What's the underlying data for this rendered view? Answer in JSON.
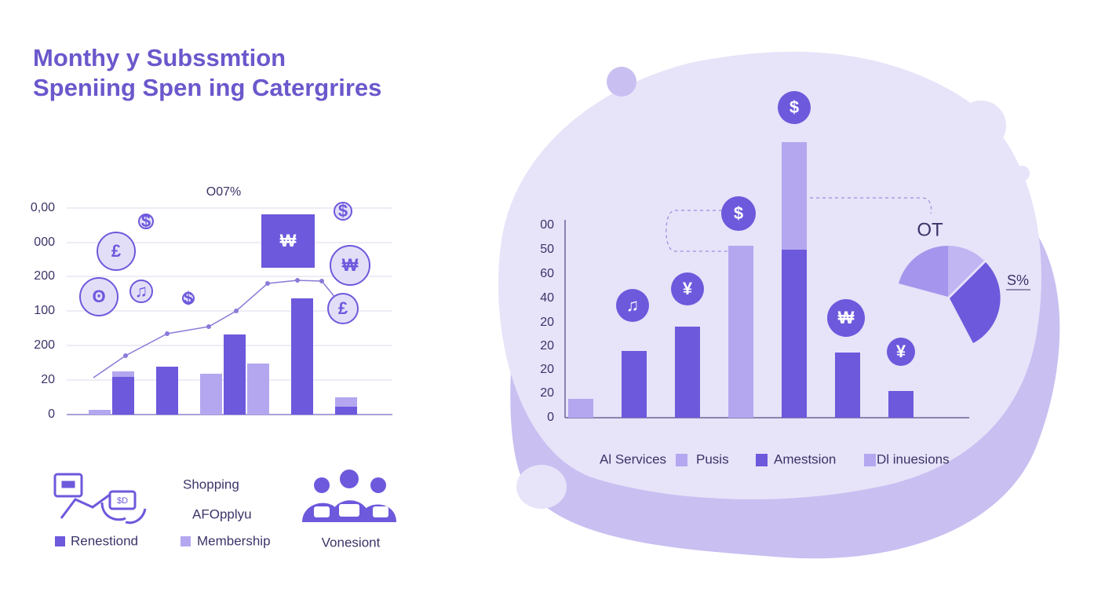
{
  "title": [
    "Monthy y Subssmtion",
    "Speniing Spen ing Catergrires"
  ],
  "left_chart": {
    "top_label": "O07%",
    "axis_labels": [
      "0,00",
      "000",
      "200",
      "100",
      "200",
      "20",
      "0"
    ],
    "badges": [
      "£",
      "$",
      "♫",
      "₩",
      "$",
      "₩",
      "£",
      "ʘ",
      "$"
    ]
  },
  "left_footer": {
    "labels": [
      "Shopping",
      "AFOpplyu",
      "Vonesiont"
    ],
    "legend": [
      "Renestiond",
      "Membership"
    ],
    "icon_label": "$D"
  },
  "right_chart": {
    "axis_labels": [
      "00",
      "50",
      "60",
      "40",
      "20",
      "20",
      "20",
      "20",
      "0"
    ],
    "badges": [
      "♫",
      "¥",
      "$",
      "$",
      "₩",
      "¥"
    ],
    "pie_labels": [
      "OT",
      "S%"
    ],
    "legend": [
      "Al Services",
      "Pusis",
      "Amestsion",
      "Dl inuesions"
    ]
  }
}
